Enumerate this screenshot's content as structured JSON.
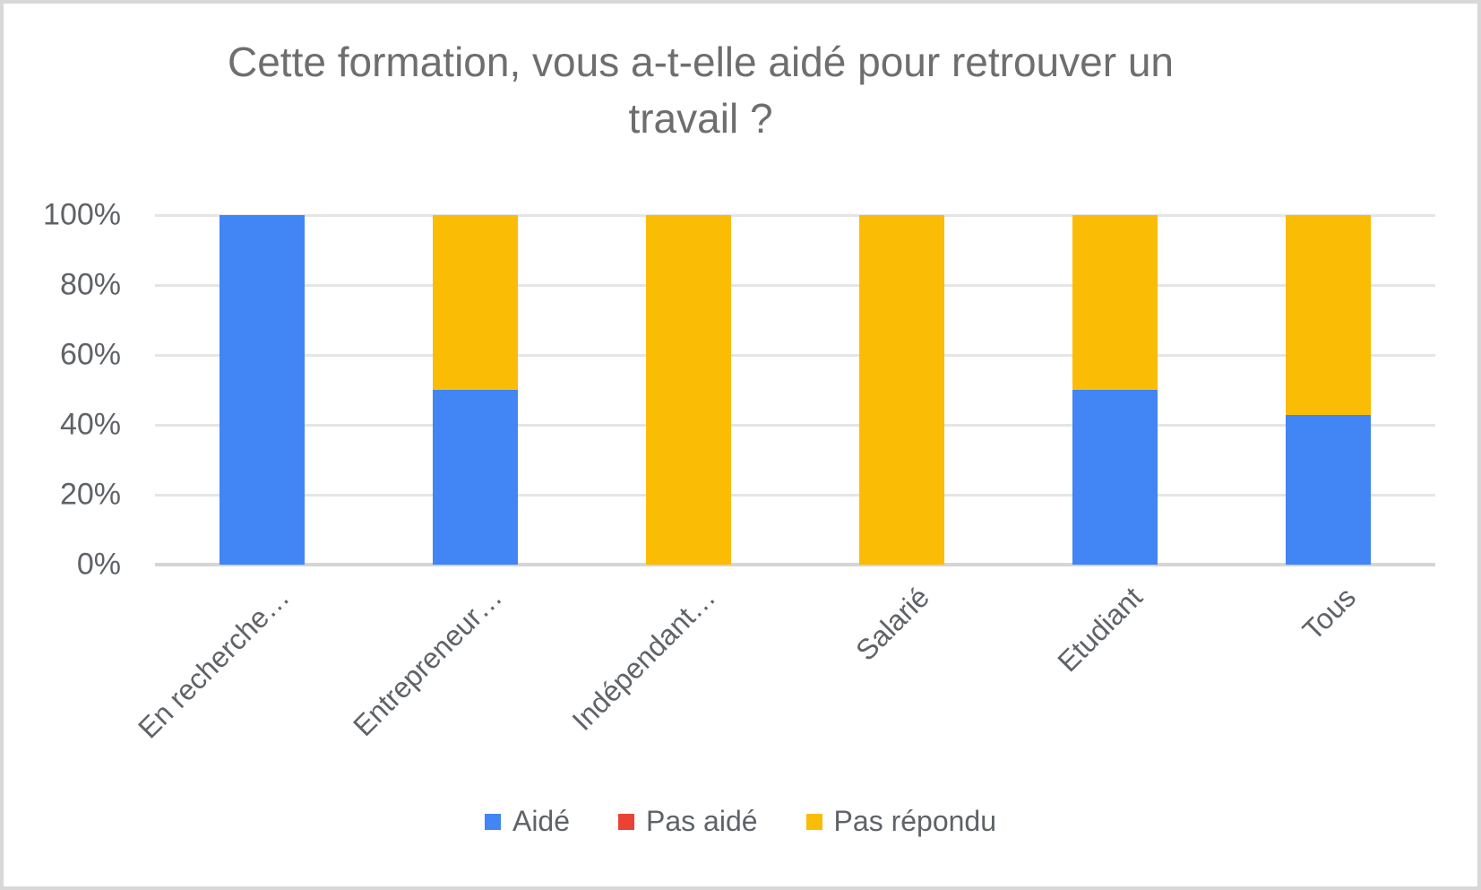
{
  "chart_data": {
    "type": "bar",
    "stacked": true,
    "stacked_mode": "percent",
    "title": "Cette formation, vous a-t-elle aidé pour retrouver un travail ?",
    "title_color": "#6e6e6e",
    "categories": [
      "En recherche…",
      "Entrepreneur…",
      "Indépendant…",
      "Salarié",
      "Etudiant",
      "Tous"
    ],
    "series": [
      {
        "name": "Aidé",
        "color": "#4285F4",
        "values": [
          100,
          50,
          0,
          0,
          50,
          42.9
        ]
      },
      {
        "name": "Pas aidé",
        "color": "#EA4335",
        "values": [
          0,
          0,
          0,
          0,
          0,
          0
        ]
      },
      {
        "name": "Pas répondu",
        "color": "#FBBC05",
        "values": [
          0,
          50,
          100,
          100,
          50,
          57.1
        ]
      }
    ],
    "y_ticks": [
      "100%",
      "80%",
      "60%",
      "40%",
      "20%",
      "0%"
    ],
    "ylim": [
      0,
      100
    ],
    "xlabel": "",
    "ylabel": "",
    "grid": true,
    "gridline_color": "#e5e5e5",
    "axis_line_color": "#d5d5d5",
    "legend_position": "bottom"
  }
}
